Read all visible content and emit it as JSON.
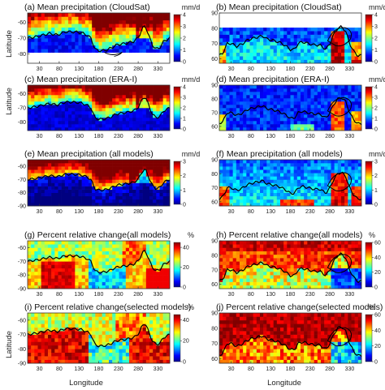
{
  "figure": {
    "ylabel": "Latitude",
    "xlabel": "Longitude"
  },
  "chart_data": [
    {
      "type": "heatmap",
      "title": "(a) Mean precipitation (CloudSat)",
      "unit": "mm/d",
      "region": "south",
      "field": "cs_s",
      "xticks": [
        "30",
        "80",
        "130",
        "180",
        "230",
        "280",
        "330"
      ],
      "yticks": [
        "-60",
        "-70",
        "-80"
      ],
      "cbar_ticks": [
        "4",
        "3",
        "2",
        "1",
        "0"
      ],
      "clim": [
        0,
        4
      ],
      "missing_below_lat": -80
    },
    {
      "type": "heatmap",
      "title": "(b) Mean precipitation (CloudSat)",
      "unit": "mm/d",
      "region": "north",
      "field": "cs_n",
      "xticks": [
        "30",
        "80",
        "130",
        "180",
        "230",
        "280",
        "330"
      ],
      "yticks": [
        "90",
        "80",
        "70",
        "60"
      ],
      "cbar_ticks": [
        "4",
        "3",
        "2",
        "1",
        "0"
      ],
      "clim": [
        0,
        4
      ],
      "missing_above_lat": 80
    },
    {
      "type": "heatmap",
      "title": "(c) Mean precipitation (ERA-I)",
      "unit": "mm/d",
      "region": "south",
      "field": "era_s",
      "xticks": [
        "30",
        "80",
        "130",
        "180",
        "230",
        "280",
        "330"
      ],
      "yticks": [
        "-60",
        "-70",
        "-80"
      ],
      "cbar_ticks": [
        "4",
        "3",
        "2",
        "1",
        "0"
      ],
      "clim": [
        0,
        4
      ]
    },
    {
      "type": "heatmap",
      "title": "(d) Mean precipitation (ERA-I)",
      "unit": "mm/d",
      "region": "north",
      "field": "era_n",
      "xticks": [
        "30",
        "80",
        "130",
        "180",
        "230",
        "280",
        "330"
      ],
      "yticks": [
        "90",
        "80",
        "70",
        "60"
      ],
      "cbar_ticks": [
        "4",
        "3",
        "2",
        "1",
        "0"
      ],
      "clim": [
        0,
        4
      ]
    },
    {
      "type": "heatmap",
      "title": "(e) Mean precipitation (all models)",
      "unit": "mm/d",
      "region": "south",
      "field": "mod_s",
      "xticks": [
        "30",
        "80",
        "130",
        "180",
        "230",
        "280",
        "330"
      ],
      "yticks": [
        "-60",
        "-70",
        "-80",
        "-90"
      ],
      "cbar_ticks": [
        "3",
        "2",
        "1",
        "0"
      ],
      "clim": [
        0,
        3
      ]
    },
    {
      "type": "heatmap",
      "title": "(f) Mean precipitation (all models)",
      "unit": "mm/d",
      "region": "north",
      "field": "mod_n",
      "xticks": [
        "30",
        "80",
        "130",
        "180",
        "230",
        "280",
        "330"
      ],
      "yticks": [
        "90",
        "80",
        "70",
        "60"
      ],
      "cbar_ticks": [
        "3",
        "2",
        "1",
        "0"
      ],
      "clim": [
        0,
        3
      ]
    },
    {
      "type": "heatmap",
      "title": "(g) Percent relative change(all models)",
      "unit": "%",
      "region": "south",
      "field": "rel_s",
      "xticks": [
        "30",
        "80",
        "130",
        "180",
        "230",
        "280",
        "330"
      ],
      "yticks": [
        "-60",
        "-70",
        "-80",
        "-90"
      ],
      "cbar_ticks": [
        "40",
        "20",
        "0"
      ],
      "clim": [
        0,
        45
      ]
    },
    {
      "type": "heatmap",
      "title": "(h) Percent relative change(all models)",
      "unit": "%",
      "region": "north",
      "field": "rel_n",
      "xticks": [
        "30",
        "80",
        "130",
        "180",
        "230",
        "280",
        "330"
      ],
      "yticks": [
        "90",
        "80",
        "70",
        "60"
      ],
      "cbar_ticks": [
        "60",
        "40",
        "20",
        "0"
      ],
      "clim": [
        0,
        60
      ]
    },
    {
      "type": "heatmap",
      "title": "(i) Percent relative change(selected  models)",
      "unit": "%",
      "region": "south",
      "field": "sel_s",
      "xticks": [
        "30",
        "80",
        "130",
        "180",
        "230",
        "280",
        "330"
      ],
      "yticks": [
        "-60",
        "-70",
        "-80",
        "-90"
      ],
      "cbar_ticks": [
        "40",
        "20",
        "0"
      ],
      "clim": [
        0,
        45
      ]
    },
    {
      "type": "heatmap",
      "title": "(j) Percent relative change(selected models)",
      "unit": "%",
      "region": "north",
      "field": "sel_n",
      "xticks": [
        "30",
        "80",
        "130",
        "180",
        "230",
        "280",
        "330"
      ],
      "yticks": [
        "90",
        "80",
        "70",
        "60"
      ],
      "cbar_ticks": [
        "60",
        "40",
        "20",
        "0"
      ],
      "clim": [
        0,
        60
      ]
    }
  ]
}
